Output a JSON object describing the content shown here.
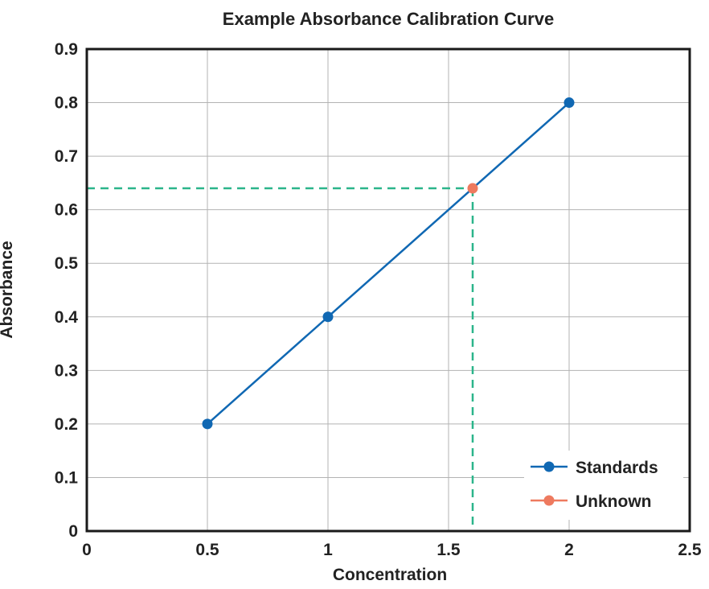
{
  "chart_data": {
    "type": "line",
    "title": "Example Absorbance Calibration Curve",
    "xlabel": "Concentration",
    "ylabel": "Absorbance",
    "xlim": [
      0,
      2.5
    ],
    "ylim": [
      0,
      0.9
    ],
    "x_ticks": [
      "0",
      "0.5",
      "1",
      "1.5",
      "2",
      "2.5"
    ],
    "y_ticks": [
      "0",
      "0.1",
      "0.2",
      "0.3",
      "0.4",
      "0.5",
      "0.6",
      "0.7",
      "0.8",
      "0.9"
    ],
    "grid": true,
    "legend_position": "bottom-right",
    "series": [
      {
        "name": "Standards",
        "color": "#1068b3",
        "x": [
          0.5,
          1,
          2
        ],
        "y": [
          0.2,
          0.4,
          0.8
        ]
      },
      {
        "name": "Unknown",
        "color": "#ee7a5f",
        "x": [
          1.6
        ],
        "y": [
          0.64
        ]
      }
    ],
    "reference_lines": {
      "color": "#2bb58a",
      "x": 1.6,
      "y": 0.64,
      "style": "dashed"
    }
  }
}
